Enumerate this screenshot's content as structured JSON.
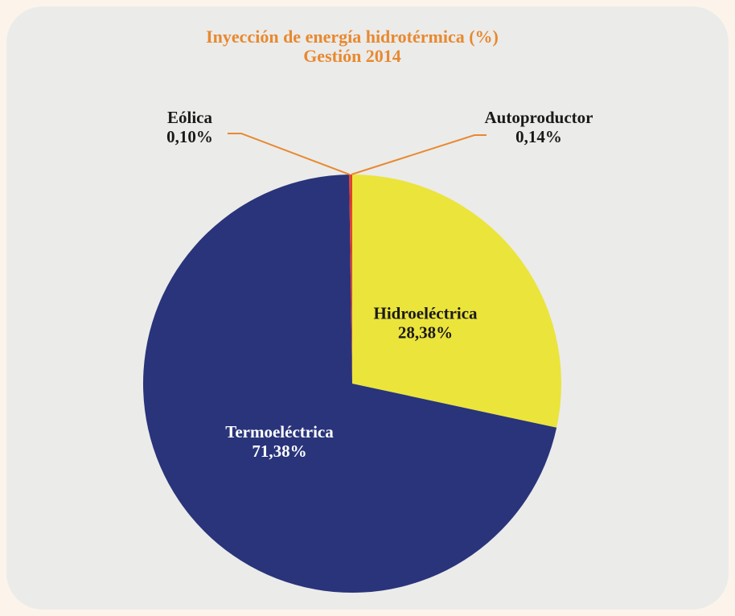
{
  "chart_data": {
    "type": "pie",
    "title": "Inyección de energía hidrotérmica (%)",
    "subtitle": "Gestión 2014",
    "categories": [
      "Hidroeléctrica",
      "Termoeléctrica",
      "Eólica",
      "Autoproductor"
    ],
    "values": [
      28.38,
      71.38,
      0.1,
      0.14
    ],
    "value_labels": [
      "28,38%",
      "71,38%",
      "0,10%",
      "0,14%"
    ],
    "colors": [
      "#ebe43b",
      "#29347a",
      "#d8322b",
      "#e0402a"
    ]
  }
}
